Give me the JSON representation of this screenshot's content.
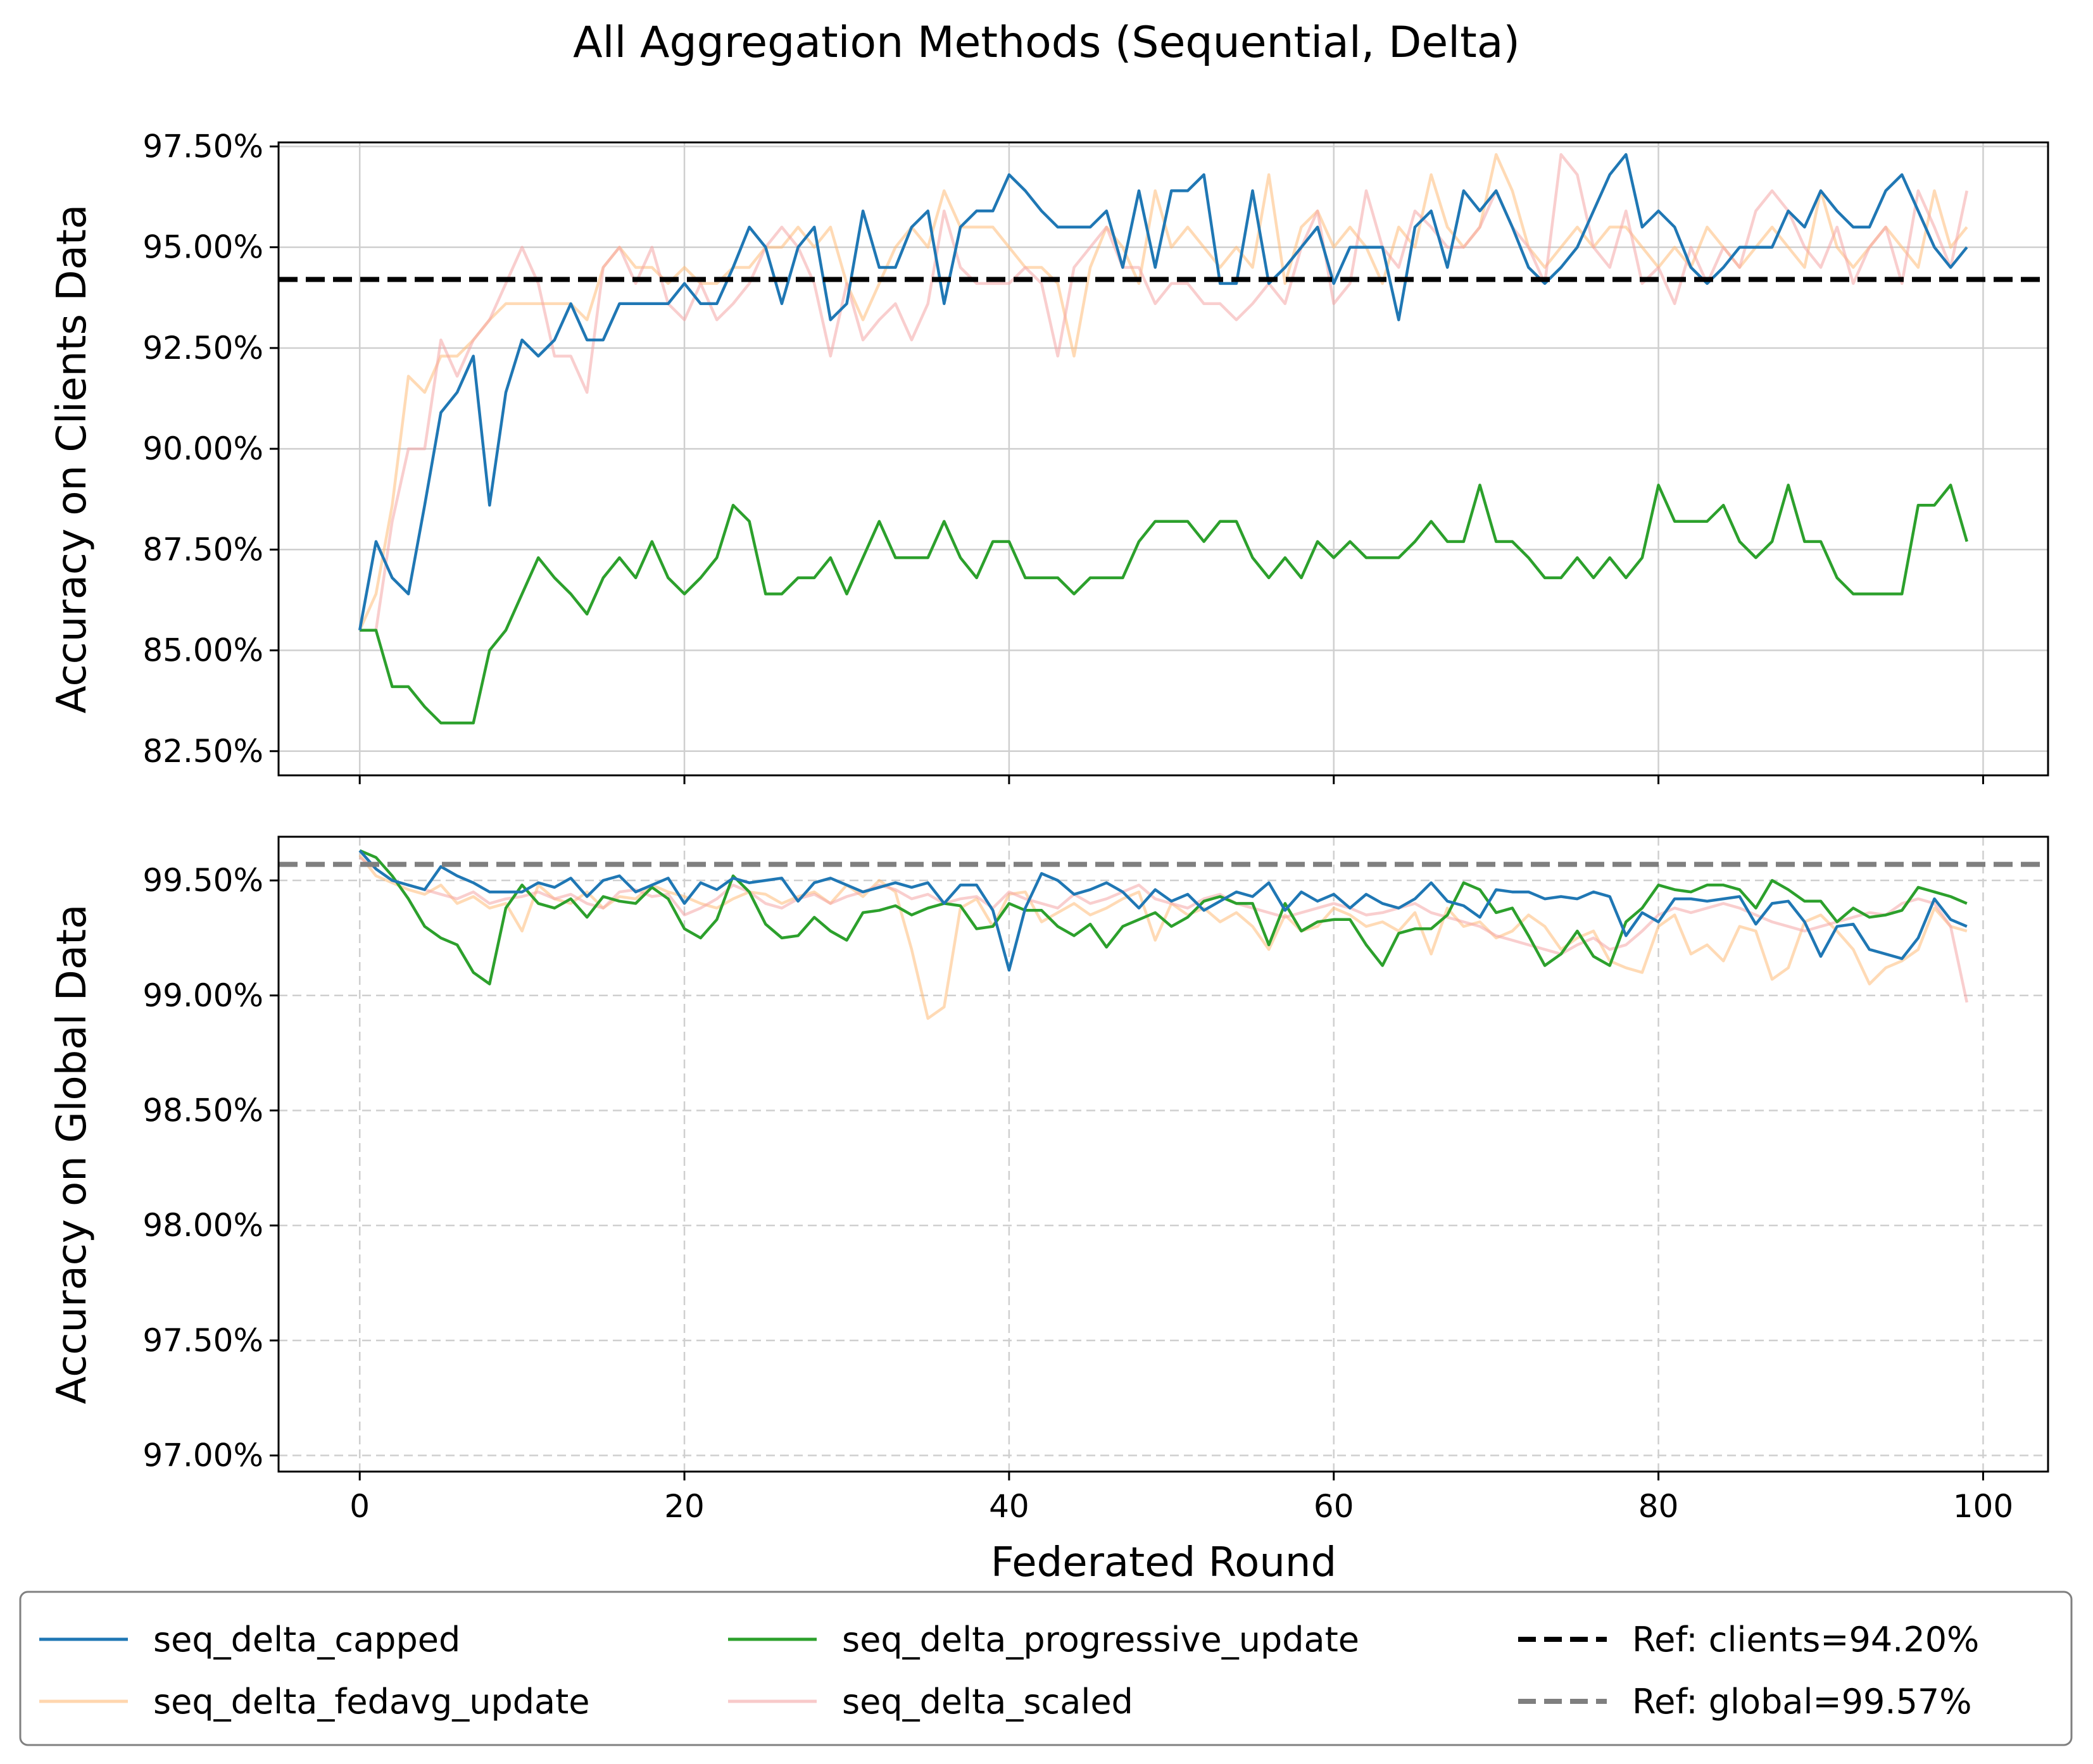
{
  "title": "All Aggregation Methods (Sequential, Delta)",
  "xlabel": "Federated Round",
  "colors": {
    "capped": "#1f77b4",
    "fedavg": "#ffbb78",
    "progressive": "#2ca02c",
    "scaled": "#f4a6a6",
    "ref_clients": "#000000",
    "ref_global": "#7f7f7f"
  },
  "legend": {
    "placement": "bottom-center",
    "items": [
      {
        "label": "seq_delta_capped",
        "color": "#1f77b4",
        "dashed": false
      },
      {
        "label": "seq_delta_progressive_update",
        "color": "#2ca02c",
        "dashed": false
      },
      {
        "label": "Ref: clients=94.20%",
        "color": "#000000",
        "dashed": true
      },
      {
        "label": "seq_delta_fedavg_update",
        "color": "#ffbb78",
        "dashed": false
      },
      {
        "label": "seq_delta_scaled",
        "color": "#f4a6a6",
        "dashed": false
      },
      {
        "label": "Ref: global=99.57%",
        "color": "#7f7f7f",
        "dashed": true
      }
    ]
  },
  "chart_data": [
    {
      "type": "line",
      "ylabel": "Accuracy on Clients Data",
      "xlim": [
        -5,
        104
      ],
      "ylim": [
        81.9,
        97.6
      ],
      "xticks": [
        0,
        20,
        40,
        60,
        80,
        100
      ],
      "yticks": [
        82.5,
        85,
        87.5,
        90,
        92.5,
        95,
        97.5
      ],
      "ytick_labels": [
        "82.50%",
        "85.00%",
        "87.50%",
        "90.00%",
        "92.50%",
        "95.00%",
        "97.50%"
      ],
      "grid": "solid",
      "x_tick_labels_shown": false,
      "reference": {
        "label": "Ref: clients=94.20%",
        "value": 94.2
      },
      "series": [
        {
          "name": "seq_delta_fedavg_update",
          "color": "#ffbb78",
          "opacity": 0.55,
          "values": [
            85.5,
            86.4,
            88.6,
            91.8,
            91.4,
            92.3,
            92.3,
            92.7,
            93.2,
            93.6,
            93.6,
            93.6,
            93.6,
            93.6,
            93.2,
            94.5,
            95.0,
            94.5,
            94.5,
            94.1,
            94.5,
            94.1,
            94.1,
            94.5,
            94.5,
            95.0,
            95.0,
            95.5,
            95.0,
            95.5,
            94.1,
            93.2,
            94.1,
            95.0,
            95.5,
            95.0,
            96.4,
            95.5,
            95.5,
            95.5,
            95.0,
            94.5,
            94.5,
            94.1,
            92.3,
            94.5,
            95.5,
            95.0,
            94.1,
            96.4,
            95.0,
            95.5,
            95.0,
            94.5,
            95.0,
            94.5,
            96.8,
            94.1,
            95.5,
            95.9,
            95.0,
            95.5,
            95.0,
            94.1,
            95.5,
            95.0,
            96.8,
            95.5,
            95.0,
            95.5,
            97.3,
            96.4,
            95.0,
            94.5,
            95.0,
            95.5,
            95.0,
            95.5,
            95.5,
            95.0,
            94.5,
            95.0,
            94.5,
            95.5,
            95.0,
            94.5,
            95.0,
            95.5,
            95.0,
            94.5,
            96.4,
            95.0,
            94.5,
            95.0,
            95.5,
            95.0,
            94.5,
            96.4,
            95.0,
            95.5
          ]
        },
        {
          "name": "seq_delta_scaled",
          "color": "#f4a6a6",
          "opacity": 0.55,
          "values": [
            85.5,
            85.5,
            88.2,
            90.0,
            90.0,
            92.7,
            91.8,
            92.7,
            93.2,
            94.1,
            95.0,
            94.1,
            92.3,
            92.3,
            91.4,
            94.5,
            95.0,
            94.1,
            95.0,
            93.6,
            93.2,
            94.1,
            93.2,
            93.6,
            94.1,
            95.0,
            95.5,
            95.0,
            94.1,
            92.3,
            94.1,
            92.7,
            93.2,
            93.6,
            92.7,
            93.6,
            95.9,
            94.5,
            94.1,
            94.1,
            94.1,
            94.5,
            94.1,
            92.3,
            94.5,
            95.0,
            95.5,
            94.5,
            94.5,
            93.6,
            94.1,
            94.1,
            93.6,
            93.6,
            93.2,
            93.6,
            94.1,
            93.6,
            95.0,
            95.9,
            93.6,
            94.1,
            96.4,
            95.0,
            94.5,
            95.9,
            95.5,
            95.0,
            95.0,
            95.5,
            96.4,
            95.5,
            95.0,
            94.1,
            97.3,
            96.8,
            95.0,
            94.5,
            95.9,
            94.1,
            94.5,
            93.6,
            95.0,
            94.1,
            95.0,
            94.5,
            95.9,
            96.4,
            95.9,
            95.0,
            94.5,
            95.5,
            94.1,
            95.0,
            95.5,
            94.1,
            96.4,
            95.5,
            94.5,
            96.4
          ]
        },
        {
          "name": "seq_delta_progressive_update",
          "color": "#2ca02c",
          "opacity": 1,
          "values": [
            85.5,
            85.5,
            84.1,
            84.1,
            83.6,
            83.2,
            83.2,
            83.2,
            85.0,
            85.5,
            86.4,
            87.3,
            86.8,
            86.4,
            85.9,
            86.8,
            87.3,
            86.8,
            87.7,
            86.8,
            86.4,
            86.8,
            87.3,
            88.6,
            88.2,
            86.4,
            86.4,
            86.8,
            86.8,
            87.3,
            86.4,
            87.3,
            88.2,
            87.3,
            87.3,
            87.3,
            88.2,
            87.3,
            86.8,
            87.7,
            87.7,
            86.8,
            86.8,
            86.8,
            86.4,
            86.8,
            86.8,
            86.8,
            87.7,
            88.2,
            88.2,
            88.2,
            87.7,
            88.2,
            88.2,
            87.3,
            86.8,
            87.3,
            86.8,
            87.7,
            87.3,
            87.7,
            87.3,
            87.3,
            87.3,
            87.7,
            88.2,
            87.7,
            87.7,
            89.1,
            87.7,
            87.7,
            87.3,
            86.8,
            86.8,
            87.3,
            86.8,
            87.3,
            86.8,
            87.3,
            89.1,
            88.2,
            88.2,
            88.2,
            88.6,
            87.7,
            87.3,
            87.7,
            89.1,
            87.7,
            87.7,
            86.8,
            86.4,
            86.4,
            86.4,
            86.4,
            88.6,
            88.6,
            89.1,
            87.7
          ]
        },
        {
          "name": "seq_delta_capped",
          "color": "#1f77b4",
          "opacity": 1,
          "values": [
            85.5,
            87.7,
            86.8,
            86.4,
            88.6,
            90.9,
            91.4,
            92.3,
            88.6,
            91.4,
            92.7,
            92.3,
            92.7,
            93.6,
            92.7,
            92.7,
            93.6,
            93.6,
            93.6,
            93.6,
            94.1,
            93.6,
            93.6,
            94.5,
            95.5,
            95.0,
            93.6,
            95.0,
            95.5,
            93.2,
            93.6,
            95.9,
            94.5,
            94.5,
            95.5,
            95.9,
            93.6,
            95.5,
            95.9,
            95.9,
            96.8,
            96.4,
            95.9,
            95.5,
            95.5,
            95.5,
            95.9,
            94.5,
            96.4,
            94.5,
            96.4,
            96.4,
            96.8,
            94.1,
            94.1,
            96.4,
            94.1,
            94.5,
            95.0,
            95.5,
            94.1,
            95.0,
            95.0,
            95.0,
            93.2,
            95.5,
            95.9,
            94.5,
            96.4,
            95.9,
            96.4,
            95.5,
            94.5,
            94.1,
            94.5,
            95.0,
            95.9,
            96.8,
            97.3,
            95.5,
            95.9,
            95.5,
            94.5,
            94.1,
            94.5,
            95.0,
            95.0,
            95.0,
            95.9,
            95.5,
            96.4,
            95.9,
            95.5,
            95.5,
            96.4,
            96.8,
            95.9,
            95.0,
            94.5,
            95.0
          ]
        }
      ]
    },
    {
      "type": "line",
      "ylabel": "Accuracy on Global Data",
      "xlim": [
        -5,
        104
      ],
      "ylim": [
        96.93,
        99.69
      ],
      "xticks": [
        0,
        20,
        40,
        60,
        80,
        100
      ],
      "xtick_labels": [
        "0",
        "20",
        "40",
        "60",
        "80",
        "100"
      ],
      "yticks": [
        97.0,
        97.5,
        98.0,
        98.5,
        99.0,
        99.5
      ],
      "ytick_labels": [
        "97.00%",
        "97.50%",
        "98.00%",
        "98.50%",
        "99.00%",
        "99.50%"
      ],
      "grid": "dashed",
      "x_tick_labels_shown": true,
      "reference": {
        "label": "Ref: global=99.57%",
        "value": 99.57
      },
      "series": [
        {
          "name": "seq_delta_fedavg_update",
          "color": "#ffbb78",
          "opacity": 0.55,
          "values": [
            99.61,
            99.52,
            99.49,
            99.46,
            99.44,
            99.48,
            99.4,
            99.43,
            99.38,
            99.4,
            99.28,
            99.48,
            99.42,
            99.4,
            99.45,
            99.38,
            99.43,
            99.42,
            99.48,
            99.45,
            99.43,
            99.4,
            99.38,
            99.42,
            99.45,
            99.44,
            99.4,
            99.43,
            99.45,
            99.4,
            99.48,
            99.43,
            99.5,
            99.45,
            99.2,
            98.9,
            98.95,
            99.38,
            99.42,
            99.3,
            99.44,
            99.45,
            99.32,
            99.36,
            99.4,
            99.35,
            99.38,
            99.42,
            99.45,
            99.24,
            99.4,
            99.35,
            99.38,
            99.32,
            99.36,
            99.3,
            99.2,
            99.35,
            99.28,
            99.3,
            99.38,
            99.35,
            99.3,
            99.32,
            99.28,
            99.36,
            99.18,
            99.38,
            99.3,
            99.32,
            99.25,
            99.28,
            99.35,
            99.3,
            99.2,
            99.25,
            99.28,
            99.15,
            99.12,
            99.1,
            99.3,
            99.35,
            99.18,
            99.22,
            99.15,
            99.3,
            99.28,
            99.07,
            99.12,
            99.32,
            99.35,
            99.28,
            99.2,
            99.05,
            99.12,
            99.15,
            99.2,
            99.38,
            99.3,
            99.28
          ]
        },
        {
          "name": "seq_delta_scaled",
          "color": "#f4a6a6",
          "opacity": 0.55,
          "values": [
            99.6,
            99.55,
            99.5,
            99.48,
            99.46,
            99.44,
            99.42,
            99.45,
            99.4,
            99.42,
            99.43,
            99.45,
            99.42,
            99.44,
            99.4,
            99.38,
            99.45,
            99.46,
            99.43,
            99.44,
            99.35,
            99.38,
            99.42,
            99.48,
            99.45,
            99.4,
            99.38,
            99.42,
            99.44,
            99.4,
            99.43,
            99.45,
            99.48,
            99.46,
            99.42,
            99.44,
            99.4,
            99.42,
            99.43,
            99.38,
            99.45,
            99.42,
            99.4,
            99.38,
            99.44,
            99.4,
            99.42,
            99.45,
            99.48,
            99.42,
            99.4,
            99.38,
            99.42,
            99.44,
            99.4,
            99.38,
            99.36,
            99.34,
            99.36,
            99.38,
            99.4,
            99.38,
            99.35,
            99.36,
            99.38,
            99.4,
            99.36,
            99.34,
            99.32,
            99.3,
            99.26,
            99.24,
            99.22,
            99.2,
            99.18,
            99.22,
            99.25,
            99.2,
            99.22,
            99.28,
            99.35,
            99.38,
            99.36,
            99.38,
            99.4,
            99.38,
            99.35,
            99.32,
            99.3,
            99.28,
            99.3,
            99.32,
            99.34,
            99.36,
            99.35,
            99.4,
            99.42,
            99.4,
            99.3,
            98.97
          ]
        },
        {
          "name": "seq_delta_progressive_update",
          "color": "#2ca02c",
          "opacity": 1,
          "values": [
            99.63,
            99.6,
            99.52,
            99.42,
            99.3,
            99.25,
            99.22,
            99.1,
            99.05,
            99.38,
            99.48,
            99.4,
            99.38,
            99.42,
            99.34,
            99.43,
            99.41,
            99.4,
            99.47,
            99.42,
            99.29,
            99.25,
            99.33,
            99.52,
            99.45,
            99.31,
            99.25,
            99.26,
            99.34,
            99.28,
            99.24,
            99.36,
            99.37,
            99.39,
            99.35,
            99.38,
            99.4,
            99.39,
            99.29,
            99.3,
            99.4,
            99.37,
            99.37,
            99.3,
            99.26,
            99.31,
            99.21,
            99.3,
            99.33,
            99.36,
            99.3,
            99.34,
            99.41,
            99.43,
            99.4,
            99.4,
            99.22,
            99.4,
            99.28,
            99.32,
            99.33,
            99.33,
            99.22,
            99.13,
            99.27,
            99.29,
            99.29,
            99.35,
            99.49,
            99.46,
            99.36,
            99.38,
            99.26,
            99.13,
            99.18,
            99.28,
            99.17,
            99.13,
            99.32,
            99.38,
            99.48,
            99.46,
            99.45,
            99.48,
            99.48,
            99.46,
            99.38,
            99.5,
            99.46,
            99.41,
            99.41,
            99.32,
            99.38,
            99.34,
            99.35,
            99.37,
            99.47,
            99.45,
            99.43,
            99.4
          ]
        },
        {
          "name": "seq_delta_capped",
          "color": "#1f77b4",
          "opacity": 1,
          "values": [
            99.63,
            99.55,
            99.5,
            99.48,
            99.46,
            99.56,
            99.52,
            99.49,
            99.45,
            99.45,
            99.45,
            99.49,
            99.47,
            99.51,
            99.43,
            99.5,
            99.52,
            99.45,
            99.48,
            99.51,
            99.4,
            99.49,
            99.46,
            99.51,
            99.49,
            99.5,
            99.51,
            99.41,
            99.49,
            99.51,
            99.48,
            99.45,
            99.47,
            99.49,
            99.47,
            99.49,
            99.4,
            99.48,
            99.48,
            99.37,
            99.11,
            99.38,
            99.53,
            99.5,
            99.44,
            99.46,
            99.49,
            99.45,
            99.38,
            99.46,
            99.41,
            99.44,
            99.37,
            99.41,
            99.45,
            99.43,
            99.49,
            99.37,
            99.45,
            99.41,
            99.44,
            99.38,
            99.44,
            99.4,
            99.38,
            99.42,
            99.49,
            99.41,
            99.39,
            99.34,
            99.46,
            99.45,
            99.45,
            99.42,
            99.43,
            99.42,
            99.45,
            99.43,
            99.26,
            99.36,
            99.32,
            99.42,
            99.42,
            99.41,
            99.42,
            99.43,
            99.31,
            99.4,
            99.41,
            99.32,
            99.17,
            99.3,
            99.31,
            99.2,
            99.18,
            99.16,
            99.25,
            99.42,
            99.33,
            99.3
          ]
        }
      ]
    }
  ]
}
